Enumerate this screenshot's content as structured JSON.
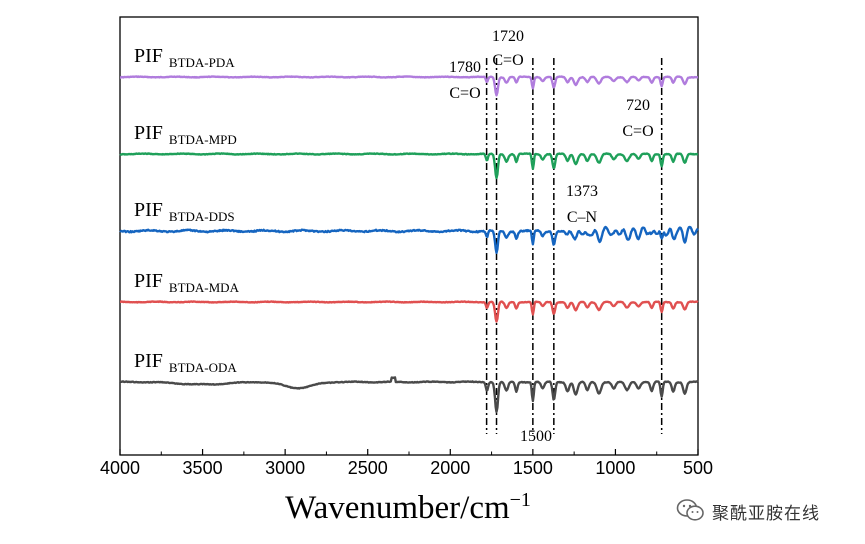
{
  "chart_data": {
    "type": "line",
    "title": "",
    "xlabel": "Wavenumber/cm",
    "xlabel_superscript": "−1",
    "ylabel": "",
    "xlim": [
      4000,
      500
    ],
    "x_ticks": [
      4000,
      3500,
      3000,
      2500,
      2000,
      1500,
      1000,
      500
    ],
    "x_tick_labels": [
      "4000",
      "3500",
      "3000",
      "2500",
      "2000",
      "1500",
      "1000",
      "500"
    ],
    "series": [
      {
        "name": "PIF",
        "subscript": "BTDA-PDA",
        "color": "#b07cdd",
        "offset": 0
      },
      {
        "name": "PIF",
        "subscript": "BTDA-MPD",
        "color": "#1fa05a",
        "offset": 1
      },
      {
        "name": "PIF",
        "subscript": "BTDA-DDS",
        "color": "#1565c0",
        "offset": 2
      },
      {
        "name": "PIF",
        "subscript": "BTDA-MDA",
        "color": "#e05050",
        "offset": 3
      },
      {
        "name": "PIF",
        "subscript": "BTDA-ODA",
        "color": "#4a4a4a",
        "offset": 4
      }
    ],
    "reference_lines": [
      1780,
      1720,
      1500,
      1373,
      720
    ],
    "annotations": [
      {
        "wavenumber": 1780,
        "value": "1780",
        "label": "C=O"
      },
      {
        "wavenumber": 1720,
        "value": "1720",
        "label": "C=O"
      },
      {
        "wavenumber": 1500,
        "value": "1500",
        "label": ""
      },
      {
        "wavenumber": 1373,
        "value": "1373",
        "label": "C–N"
      },
      {
        "wavenumber": 720,
        "value": "720",
        "label": "C=O"
      }
    ]
  },
  "watermark": {
    "text": "聚酰亚胺在线",
    "icon": "wechat-icon"
  }
}
